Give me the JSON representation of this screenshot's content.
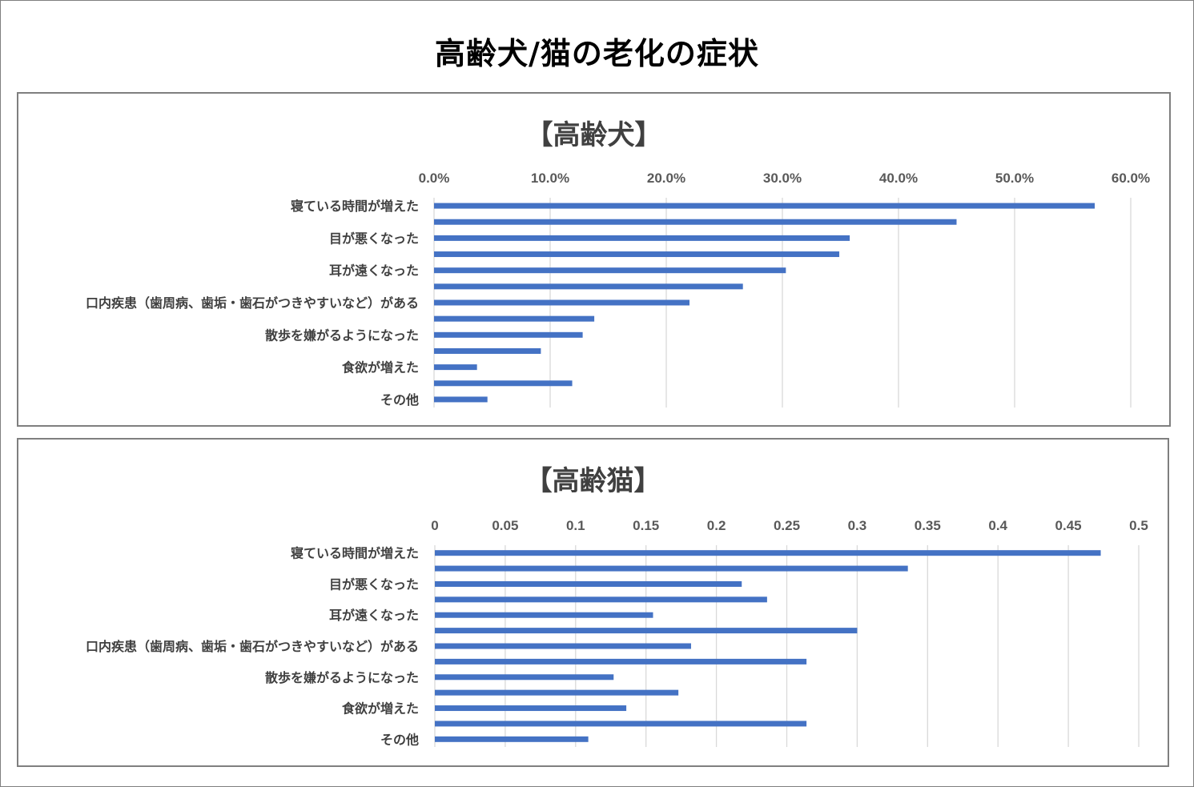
{
  "title": "高齢犬/猫の老化の症状",
  "colors": {
    "bar": "#4472c4",
    "grid": "#d9d9d9",
    "text": "#404040"
  },
  "chart_data": [
    {
      "type": "bar",
      "orientation": "horizontal",
      "title": "【高齢犬】",
      "xlim": [
        0,
        60
      ],
      "x_ticks": [
        "0.0%",
        "10.0%",
        "20.0%",
        "30.0%",
        "40.0%",
        "50.0%",
        "60.0%"
      ],
      "grid": true,
      "categories": [
        "寝ている時間が増えた",
        "",
        "目が悪くなった",
        "",
        "耳が遠くなった",
        "",
        "口内疾患（歯周病、歯垢・歯石がつきやすいなど）がある",
        "",
        "散歩を嫌がるようになった",
        "",
        "食欲が増えた",
        "",
        "その他"
      ],
      "values": [
        56.9,
        45.0,
        35.8,
        34.9,
        30.3,
        26.6,
        22.0,
        13.8,
        12.8,
        9.2,
        3.7,
        11.9,
        4.6
      ]
    },
    {
      "type": "bar",
      "orientation": "horizontal",
      "title": "【高齢猫】",
      "xlim": [
        0,
        0.5
      ],
      "x_ticks": [
        "0",
        "0.05",
        "0.1",
        "0.15",
        "0.2",
        "0.25",
        "0.3",
        "0.35",
        "0.4",
        "0.45",
        "0.5"
      ],
      "grid": true,
      "categories": [
        "寝ている時間が増えた",
        "",
        "目が悪くなった",
        "",
        "耳が遠くなった",
        "",
        "口内疾患（歯周病、歯垢・歯石がつきやすいなど）がある",
        "",
        "散歩を嫌がるようになった",
        "",
        "食欲が増えた",
        "",
        "その他"
      ],
      "values": [
        0.473,
        0.336,
        0.218,
        0.236,
        0.155,
        0.3,
        0.182,
        0.264,
        0.127,
        0.173,
        0.136,
        0.264,
        0.109
      ]
    }
  ]
}
